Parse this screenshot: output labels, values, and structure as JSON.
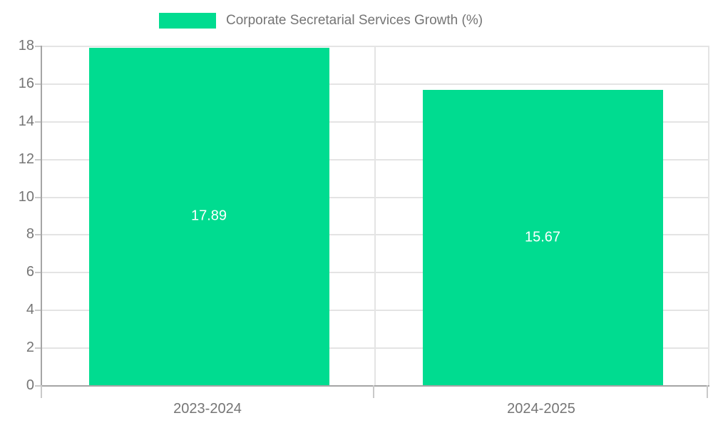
{
  "chart_data": {
    "type": "bar",
    "title": "Corporate Secretarial Services Growth (%)",
    "categories": [
      "2023-2024",
      "2024-2025"
    ],
    "series": [
      {
        "name": "Corporate Secretarial Services Growth (%)",
        "values": [
          17.89,
          15.67
        ]
      }
    ],
    "value_labels": [
      "17.89",
      "15.67"
    ],
    "ylim": [
      0,
      18
    ],
    "ytick_step": 2,
    "grid": true,
    "legend_position": "top",
    "xlabel": "",
    "ylabel": "",
    "colors": {
      "bar": "#00DC90",
      "grid": "#e4e4e4",
      "axis": "#a5a5a5",
      "tick": "#c9c9c9",
      "text": "#757575",
      "value_label": "#ffffff"
    }
  }
}
